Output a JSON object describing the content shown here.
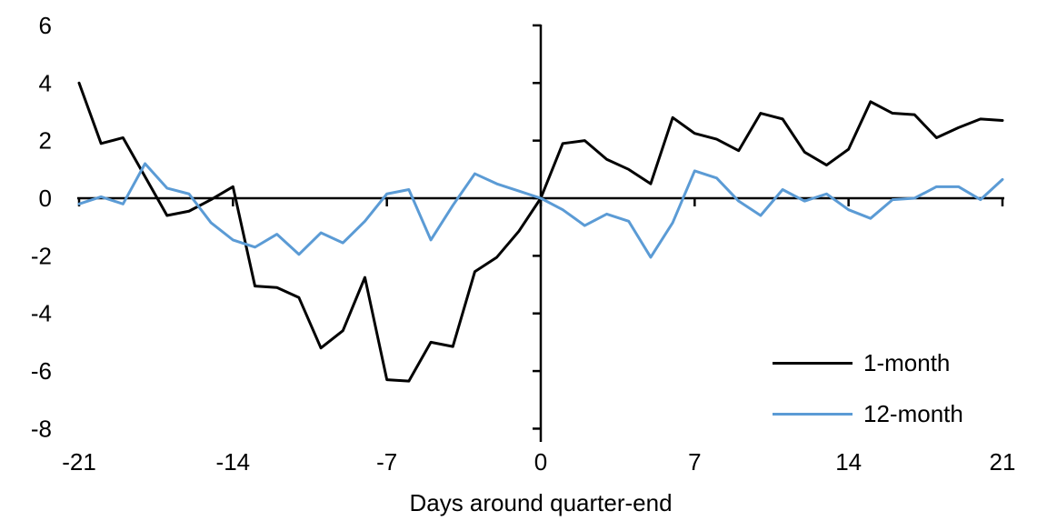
{
  "chart_data": {
    "type": "line",
    "title": "",
    "xlabel": "Days around quarter-end",
    "ylabel": "",
    "xlim": [
      -21,
      21
    ],
    "ylim": [
      -8,
      6
    ],
    "grid": false,
    "legend_position": "inside-bottom-right",
    "axes_cross_at_zero": true,
    "axis_color": "#000000",
    "x_ticks": [
      -21,
      -14,
      -7,
      0,
      7,
      14,
      21
    ],
    "y_ticks": [
      6,
      4,
      2,
      0,
      -2,
      -4,
      -6,
      -8
    ],
    "x": [
      -21,
      -20,
      -19,
      -18,
      -17,
      -16,
      -15,
      -14,
      -13,
      -12,
      -11,
      -10,
      -9,
      -8,
      -7,
      -6,
      -5,
      -4,
      -3,
      -2,
      -1,
      0,
      1,
      2,
      3,
      4,
      5,
      6,
      7,
      8,
      9,
      10,
      11,
      12,
      13,
      14,
      15,
      16,
      17,
      18,
      19,
      20,
      21
    ],
    "series": [
      {
        "name": "1-month",
        "color": "#000000",
        "values": [
          4.0,
          1.9,
          2.1,
          0.75,
          -0.6,
          -0.45,
          -0.05,
          0.4,
          -3.05,
          -3.1,
          -3.45,
          -5.2,
          -4.6,
          -2.75,
          -6.3,
          -6.35,
          -5.0,
          -5.15,
          -2.55,
          -2.05,
          -1.15,
          0.0,
          1.9,
          2.0,
          1.35,
          1.0,
          0.5,
          2.8,
          2.25,
          2.05,
          1.65,
          2.95,
          2.75,
          1.6,
          1.15,
          1.7,
          3.35,
          2.95,
          2.9,
          2.1,
          2.45,
          2.75,
          2.7
        ]
      },
      {
        "name": "12-month",
        "color": "#5B9BD5",
        "values": [
          -0.2,
          0.05,
          -0.2,
          1.2,
          0.35,
          0.15,
          -0.85,
          -1.45,
          -1.7,
          -1.25,
          -1.95,
          -1.2,
          -1.55,
          -0.8,
          0.15,
          0.3,
          -1.45,
          -0.25,
          0.85,
          0.5,
          0.25,
          0.0,
          -0.4,
          -0.95,
          -0.55,
          -0.8,
          -2.05,
          -0.85,
          0.95,
          0.7,
          -0.1,
          -0.6,
          0.3,
          -0.1,
          0.15,
          -0.4,
          -0.7,
          -0.05,
          0.0,
          0.4,
          0.4,
          -0.05,
          0.65
        ]
      }
    ]
  }
}
